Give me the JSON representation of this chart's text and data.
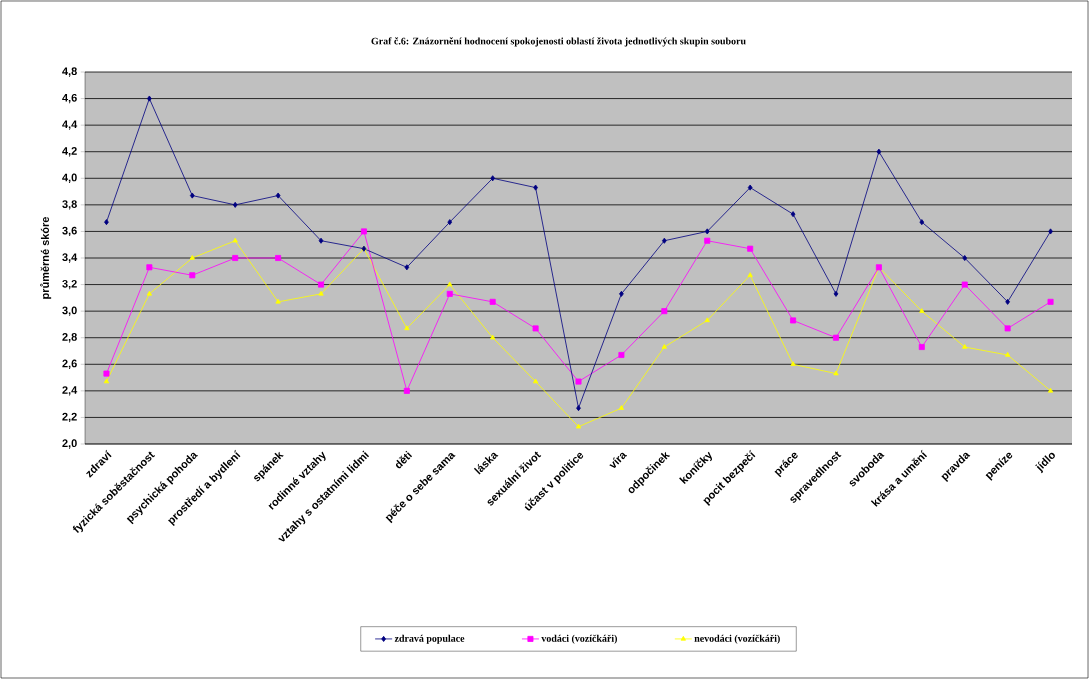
{
  "chart_data": {
    "type": "line",
    "title": "Graf č.6:  Znázornění hodnocení spokojenosti oblastí života jednotlivých skupin souboru",
    "ylabel": "průměrné skóre",
    "categories": [
      "zdraví",
      "fyzická soběstačnost",
      "psychická pohoda",
      "prostředí a bydlení",
      "spánek",
      "rodinné vztahy",
      "vztahy s ostatními lidmi",
      "děti",
      "péče o sebe sama",
      "láska",
      "sexuální život",
      "účast v politice",
      "víra",
      "odpočinek",
      "koníčky",
      "pocit bezpečí",
      "práce",
      "spravedlnost",
      "svoboda",
      "krása a umění",
      "pravda",
      "peníze",
      "jídlo"
    ],
    "series": [
      {
        "name": "zdravá populace",
        "color": "#000080",
        "marker": "diamond",
        "values": [
          3.67,
          4.6,
          3.87,
          3.8,
          3.87,
          3.53,
          3.47,
          3.33,
          3.67,
          4.0,
          3.93,
          2.27,
          3.13,
          3.53,
          3.6,
          3.93,
          3.73,
          3.13,
          4.2,
          3.67,
          3.4,
          3.07,
          3.6
        ]
      },
      {
        "name": "vodáci (vozíčkáři)",
        "color": "#ff00ff",
        "marker": "square",
        "values": [
          2.53,
          3.33,
          3.27,
          3.4,
          3.4,
          3.2,
          3.6,
          2.4,
          3.13,
          3.07,
          2.87,
          2.47,
          2.67,
          3.0,
          3.53,
          3.47,
          2.93,
          2.8,
          3.33,
          2.73,
          3.2,
          2.87,
          3.07
        ]
      },
      {
        "name": "nevodáci (vozíčkáři)",
        "color": "#ffff00",
        "marker": "triangle",
        "values": [
          2.47,
          3.13,
          3.4,
          3.53,
          3.07,
          3.13,
          3.47,
          2.87,
          3.2,
          2.8,
          2.47,
          2.13,
          2.27,
          2.73,
          2.93,
          3.27,
          2.6,
          2.53,
          3.33,
          3.0,
          2.73,
          2.67,
          2.4
        ]
      }
    ],
    "ylim": [
      2.0,
      4.8
    ],
    "yticks": [
      {
        "value": 2.0,
        "label": "2,0"
      },
      {
        "value": 2.2,
        "label": "2,2"
      },
      {
        "value": 2.4,
        "label": "2,4"
      },
      {
        "value": 2.6,
        "label": "2,6"
      },
      {
        "value": 2.8,
        "label": "2,8"
      },
      {
        "value": 3.0,
        "label": "3,0"
      },
      {
        "value": 3.2,
        "label": "3,2"
      },
      {
        "value": 3.4,
        "label": "3,4"
      },
      {
        "value": 3.6,
        "label": "3,6"
      },
      {
        "value": 3.8,
        "label": "3,8"
      },
      {
        "value": 4.0,
        "label": "4,0"
      },
      {
        "value": 4.2,
        "label": "4,2"
      },
      {
        "value": 4.4,
        "label": "4,4"
      },
      {
        "value": 4.6,
        "label": "4,6"
      },
      {
        "value": 4.8,
        "label": "4,8"
      }
    ],
    "grid": "y",
    "legend": "bottom",
    "line_style": "solid"
  }
}
